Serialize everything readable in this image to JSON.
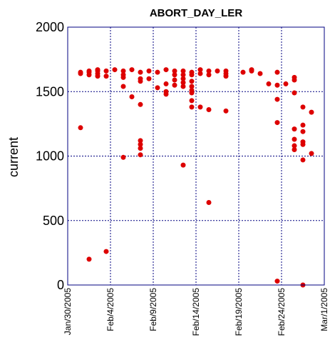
{
  "chart_data": {
    "type": "scatter",
    "title": "ABORT_DAY_LER",
    "xlabel": "",
    "ylabel": "current",
    "xlim": [
      "2005-01-30",
      "2005-03-01"
    ],
    "ylim": [
      0,
      2000
    ],
    "yticks": [
      0,
      500,
      1000,
      1500,
      2000
    ],
    "xticks": [
      "Jan/30/2005",
      "Feb/4/2005",
      "Feb/9/2005",
      "Feb/14/2005",
      "Feb/19/2005",
      "Feb/24/2005",
      "Mar/1/2005"
    ],
    "grid": true,
    "marker_color": "#dd0000",
    "points": [
      [
        "2005-01-31T12:00",
        1640
      ],
      [
        "2005-01-31T12:00",
        1650
      ],
      [
        "2005-01-31T12:00",
        1220
      ],
      [
        "2005-02-01T12:00",
        1630
      ],
      [
        "2005-02-01T12:00",
        1650
      ],
      [
        "2005-02-01T12:00",
        1660
      ],
      [
        "2005-02-01T12:00",
        200
      ],
      [
        "2005-02-02T12:00",
        1620
      ],
      [
        "2005-02-02T12:00",
        1640
      ],
      [
        "2005-02-02T12:00",
        1660
      ],
      [
        "2005-02-02T12:00",
        1670
      ],
      [
        "2005-02-03T12:00",
        1620
      ],
      [
        "2005-02-03T12:00",
        1660
      ],
      [
        "2005-02-03T12:00",
        260
      ],
      [
        "2005-02-04T12:00",
        1670
      ],
      [
        "2005-02-05T12:00",
        1660
      ],
      [
        "2005-02-05T12:00",
        1630
      ],
      [
        "2005-02-05T12:00",
        1610
      ],
      [
        "2005-02-05T12:00",
        1540
      ],
      [
        "2005-02-05T12:00",
        990
      ],
      [
        "2005-02-06T12:00",
        1670
      ],
      [
        "2005-02-06T12:00",
        1460
      ],
      [
        "2005-02-07T12:00",
        1650
      ],
      [
        "2005-02-07T12:00",
        1600
      ],
      [
        "2005-02-07T12:00",
        1580
      ],
      [
        "2005-02-07T12:00",
        1400
      ],
      [
        "2005-02-07T12:00",
        1120
      ],
      [
        "2005-02-07T12:00",
        1090
      ],
      [
        "2005-02-07T12:00",
        1060
      ],
      [
        "2005-02-07T12:00",
        1010
      ],
      [
        "2005-02-08T12:00",
        1660
      ],
      [
        "2005-02-08T12:00",
        1600
      ],
      [
        "2005-02-09T12:00",
        1650
      ],
      [
        "2005-02-09T12:00",
        1530
      ],
      [
        "2005-02-10T12:00",
        1670
      ],
      [
        "2005-02-10T12:00",
        1560
      ],
      [
        "2005-02-10T12:00",
        1500
      ],
      [
        "2005-02-10T12:00",
        1480
      ],
      [
        "2005-02-11T12:00",
        1660
      ],
      [
        "2005-02-11T12:00",
        1630
      ],
      [
        "2005-02-11T12:00",
        1590
      ],
      [
        "2005-02-11T12:00",
        1550
      ],
      [
        "2005-02-12T12:00",
        1660
      ],
      [
        "2005-02-12T12:00",
        1630
      ],
      [
        "2005-02-12T12:00",
        1600
      ],
      [
        "2005-02-12T12:00",
        1570
      ],
      [
        "2005-02-12T12:00",
        1540
      ],
      [
        "2005-02-12T12:00",
        930
      ],
      [
        "2005-02-13T12:00",
        1650
      ],
      [
        "2005-02-13T12:00",
        1630
      ],
      [
        "2005-02-13T12:00",
        1580
      ],
      [
        "2005-02-13T12:00",
        1540
      ],
      [
        "2005-02-13T12:00",
        1510
      ],
      [
        "2005-02-13T12:00",
        1490
      ],
      [
        "2005-02-13T12:00",
        1430
      ],
      [
        "2005-02-13T12:00",
        1380
      ],
      [
        "2005-02-14T12:00",
        1670
      ],
      [
        "2005-02-14T12:00",
        1640
      ],
      [
        "2005-02-14T12:00",
        1380
      ],
      [
        "2005-02-15T12:00",
        1660
      ],
      [
        "2005-02-15T12:00",
        1630
      ],
      [
        "2005-02-15T12:00",
        1360
      ],
      [
        "2005-02-15T12:00",
        640
      ],
      [
        "2005-02-16T12:00",
        1660
      ],
      [
        "2005-02-17T12:00",
        1660
      ],
      [
        "2005-02-17T12:00",
        1640
      ],
      [
        "2005-02-17T12:00",
        1620
      ],
      [
        "2005-02-17T12:00",
        1350
      ],
      [
        "2005-02-19T12:00",
        1650
      ],
      [
        "2005-02-20T12:00",
        1670
      ],
      [
        "2005-02-20T12:00",
        1660
      ],
      [
        "2005-02-21T12:00",
        1640
      ],
      [
        "2005-02-22T12:00",
        1560
      ],
      [
        "2005-02-23T12:00",
        1650
      ],
      [
        "2005-02-23T12:00",
        1550
      ],
      [
        "2005-02-23T12:00",
        1440
      ],
      [
        "2005-02-23T12:00",
        1260
      ],
      [
        "2005-02-23T12:00",
        30
      ],
      [
        "2005-02-24T12:00",
        1560
      ],
      [
        "2005-02-25T12:00",
        1610
      ],
      [
        "2005-02-25T12:00",
        1590
      ],
      [
        "2005-02-25T12:00",
        1490
      ],
      [
        "2005-02-25T12:00",
        1210
      ],
      [
        "2005-02-25T12:00",
        1130
      ],
      [
        "2005-02-25T12:00",
        1080
      ],
      [
        "2005-02-25T12:00",
        1050
      ],
      [
        "2005-02-26T12:00",
        1380
      ],
      [
        "2005-02-26T12:00",
        1240
      ],
      [
        "2005-02-26T12:00",
        1190
      ],
      [
        "2005-02-26T12:00",
        1110
      ],
      [
        "2005-02-26T12:00",
        1090
      ],
      [
        "2005-02-26T12:00",
        970
      ],
      [
        "2005-02-26T12:00",
        0
      ],
      [
        "2005-02-27T12:00",
        1340
      ],
      [
        "2005-02-27T12:00",
        1020
      ]
    ]
  }
}
